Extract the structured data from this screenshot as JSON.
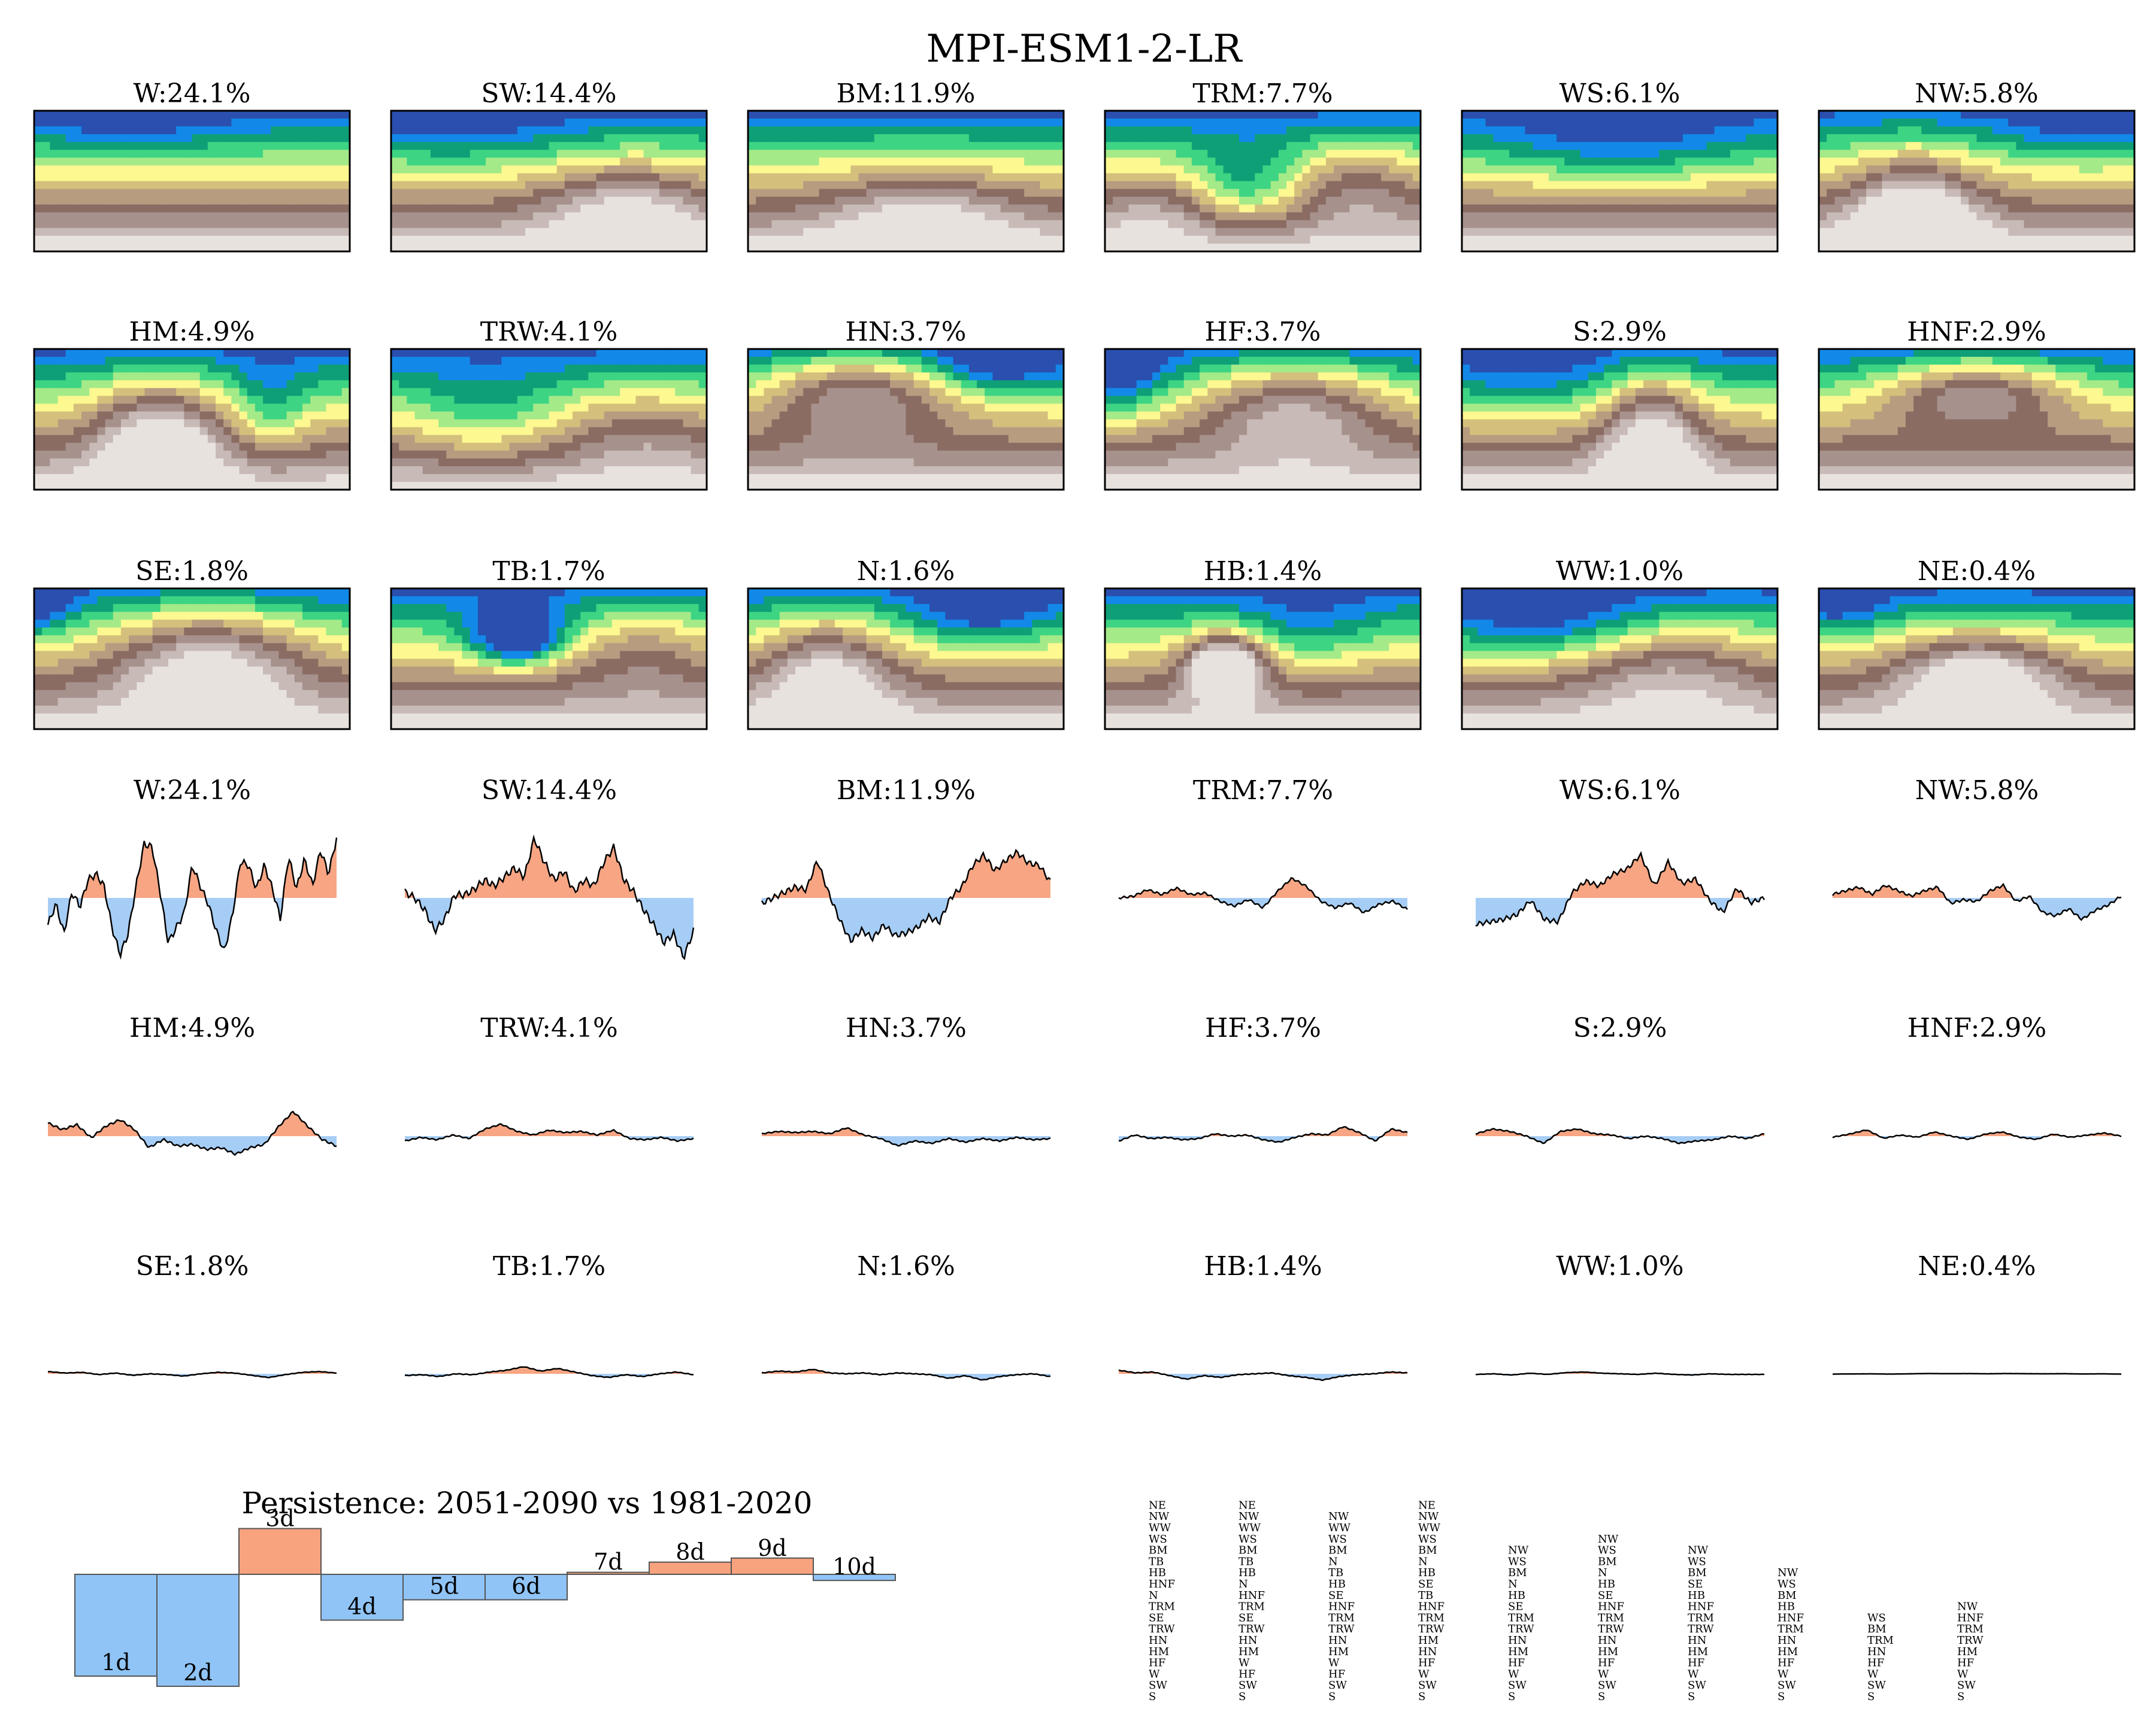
{
  "title": "MPI-ESM1-2-LR",
  "colors": {
    "positive_fill": "#f7a583",
    "negative_fill": "#a6cdf5",
    "line": "#000000",
    "bar_positive": "#f8a27e",
    "bar_negative": "#90c4f6",
    "map_palette": [
      "#e8e2df",
      "#c8bab6",
      "#a7918c",
      "#8a6c63",
      "#b89c80",
      "#d4c07c",
      "#fdf890",
      "#a4ea88",
      "#3dd483",
      "#0f9f77",
      "#1289e8",
      "#2a4faf"
    ]
  },
  "map_panels": [
    {
      "label": "W:24.1%",
      "pattern": "zonal"
    },
    {
      "label": "SW:14.4%",
      "pattern": "sw"
    },
    {
      "label": "BM:11.9%",
      "pattern": "bm"
    },
    {
      "label": "TRM:7.7%",
      "pattern": "trough"
    },
    {
      "label": "WS:6.1%",
      "pattern": "ws"
    },
    {
      "label": "NW:5.8%",
      "pattern": "nw"
    },
    {
      "label": "HM:4.9%",
      "pattern": "hm"
    },
    {
      "label": "TRW:4.1%",
      "pattern": "trw"
    },
    {
      "label": "HN:3.7%",
      "pattern": "hn"
    },
    {
      "label": "HF:3.7%",
      "pattern": "hf"
    },
    {
      "label": "S:2.9%",
      "pattern": "s"
    },
    {
      "label": "HNF:2.9%",
      "pattern": "hnf"
    },
    {
      "label": "SE:1.8%",
      "pattern": "se"
    },
    {
      "label": "TB:1.7%",
      "pattern": "tb"
    },
    {
      "label": "N:1.6%",
      "pattern": "n"
    },
    {
      "label": "HB:1.4%",
      "pattern": "hb"
    },
    {
      "label": "WW:1.0%",
      "pattern": "ww"
    },
    {
      "label": "NE:0.4%",
      "pattern": "ne"
    }
  ],
  "chart_data": [
    {
      "type": "area",
      "description_key": "frequency anomaly time series per weather type",
      "series": [
        {
          "name": "W:24.1%",
          "amplitude": 1.0,
          "values": [
            -0.45,
            -0.1,
            -0.6,
            0.1,
            -0.15,
            0.3,
            0.4,
            0.2,
            -0.5,
            -0.95,
            -0.6,
            0.2,
            0.9,
            0.85,
            0.1,
            -0.75,
            -0.5,
            -0.25,
            0.55,
            0.2,
            -0.1,
            -0.55,
            -0.9,
            -0.3,
            0.6,
            0.55,
            0.15,
            0.55,
            0.15,
            -0.35,
            0.7,
            0.15,
            0.65,
            0.2,
            0.8,
            0.4,
            1.0
          ]
        },
        {
          "name": "SW:14.4%",
          "amplitude": 1.0,
          "values": [
            0.1,
            0.0,
            -0.2,
            -0.55,
            -0.35,
            0.05,
            0.05,
            0.15,
            0.3,
            0.2,
            0.35,
            0.5,
            0.35,
            1.0,
            0.6,
            0.3,
            0.45,
            0.1,
            0.3,
            0.2,
            0.6,
            0.85,
            0.3,
            0.1,
            -0.2,
            -0.45,
            -0.75,
            -0.6,
            -1.0,
            -0.55
          ]
        },
        {
          "name": "BM:11.9%",
          "amplitude": 0.9,
          "values": [
            -0.1,
            0.0,
            0.1,
            0.2,
            0.15,
            0.7,
            0.1,
            -0.4,
            -0.8,
            -0.6,
            -0.75,
            -0.5,
            -0.7,
            -0.65,
            -0.55,
            -0.35,
            -0.45,
            0.0,
            0.2,
            0.6,
            0.8,
            0.5,
            0.7,
            0.85,
            0.65,
            0.6,
            0.3
          ]
        },
        {
          "name": "TRM:7.7%",
          "amplitude": 0.55,
          "values": [
            0.0,
            0.05,
            0.25,
            0.1,
            0.3,
            0.1,
            0.15,
            -0.1,
            -0.25,
            -0.05,
            -0.3,
            0.2,
            0.6,
            0.35,
            -0.1,
            -0.3,
            -0.15,
            -0.45,
            -0.2,
            -0.1,
            -0.35
          ]
        },
        {
          "name": "WS:6.1%",
          "amplitude": 0.8,
          "values": [
            -0.55,
            -0.5,
            -0.45,
            -0.35,
            -0.05,
            -0.45,
            -0.5,
            0.1,
            0.35,
            0.25,
            0.5,
            0.6,
            0.9,
            0.25,
            0.75,
            0.3,
            0.4,
            -0.05,
            -0.3,
            0.2,
            -0.1,
            0.0
          ]
        },
        {
          "name": "NW:5.8%",
          "amplitude": 0.6,
          "values": [
            0.1,
            0.2,
            0.3,
            0.1,
            0.35,
            0.2,
            0.05,
            0.2,
            0.3,
            -0.15,
            -0.05,
            -0.1,
            0.2,
            0.35,
            -0.1,
            0.05,
            -0.4,
            -0.5,
            -0.3,
            -0.6,
            -0.35,
            -0.2,
            0.05
          ]
        },
        {
          "name": "HM:4.9%",
          "amplitude": 0.55,
          "values": [
            0.4,
            0.2,
            0.35,
            -0.05,
            0.3,
            0.5,
            0.2,
            -0.35,
            -0.1,
            -0.3,
            -0.25,
            -0.4,
            -0.35,
            -0.55,
            -0.35,
            -0.25,
            0.3,
            0.75,
            0.3,
            -0.1,
            -0.3
          ]
        },
        {
          "name": "TRW:4.1%",
          "amplitude": 0.4,
          "values": [
            -0.2,
            -0.05,
            -0.15,
            0.05,
            -0.1,
            0.3,
            0.5,
            0.2,
            0.05,
            0.25,
            0.15,
            0.2,
            0.05,
            0.25,
            -0.1,
            -0.15,
            -0.05,
            -0.2,
            -0.1
          ]
        },
        {
          "name": "HN:3.7%",
          "amplitude": 0.4,
          "values": [
            0.1,
            0.2,
            0.15,
            0.2,
            0.1,
            0.35,
            0.05,
            -0.1,
            -0.4,
            -0.2,
            -0.3,
            -0.1,
            -0.25,
            -0.1,
            -0.2,
            -0.05,
            -0.15,
            -0.1
          ]
        },
        {
          "name": "HF:3.7%",
          "amplitude": 0.4,
          "values": [
            -0.2,
            0.05,
            -0.1,
            -0.05,
            -0.15,
            -0.1,
            0.1,
            0.0,
            0.05,
            -0.15,
            -0.25,
            -0.05,
            0.1,
            0.05,
            0.4,
            0.15,
            -0.2,
            0.3,
            0.15
          ]
        },
        {
          "name": "S:2.9%",
          "amplitude": 0.4,
          "values": [
            0.1,
            0.3,
            0.2,
            0.0,
            -0.3,
            0.2,
            0.3,
            0.1,
            0.05,
            -0.1,
            0.0,
            -0.1,
            -0.3,
            -0.2,
            -0.15,
            0.0,
            -0.1,
            0.1
          ]
        },
        {
          "name": "HNF:2.9%",
          "amplitude": 0.35,
          "values": [
            -0.05,
            0.1,
            0.3,
            -0.1,
            0.05,
            -0.05,
            0.2,
            0.0,
            -0.15,
            0.1,
            0.2,
            -0.05,
            -0.15,
            0.1,
            -0.05,
            0.05,
            0.15,
            0.0
          ]
        },
        {
          "name": "SE:1.8%",
          "amplitude": 0.25,
          "values": [
            0.15,
            0.05,
            0.1,
            -0.05,
            0.05,
            -0.1,
            0.0,
            -0.05,
            -0.15,
            0.0,
            0.1,
            0.05,
            -0.1,
            -0.25,
            -0.05,
            0.1,
            0.15,
            0.05
          ]
        },
        {
          "name": "TB:1.7%",
          "amplitude": 0.3,
          "values": [
            -0.1,
            -0.05,
            -0.15,
            0.0,
            -0.05,
            0.1,
            0.2,
            0.4,
            0.15,
            0.3,
            0.1,
            -0.1,
            -0.2,
            -0.05,
            -0.15,
            0.0,
            0.1,
            -0.05
          ]
        },
        {
          "name": "N:1.6%",
          "amplitude": 0.3,
          "values": [
            0.05,
            0.15,
            0.1,
            0.25,
            0.05,
            0.0,
            0.05,
            -0.05,
            0.05,
            0.0,
            -0.05,
            -0.25,
            -0.1,
            -0.35,
            -0.15,
            -0.05,
            0.0,
            -0.15
          ]
        },
        {
          "name": "HB:1.4%",
          "amplitude": 0.3,
          "values": [
            0.2,
            0.05,
            0.1,
            -0.1,
            -0.3,
            -0.1,
            -0.2,
            -0.05,
            0.0,
            0.05,
            -0.1,
            -0.2,
            -0.35,
            -0.15,
            -0.05,
            0.0,
            0.1,
            0.05
          ]
        },
        {
          "name": "WW:1.0%",
          "amplitude": 0.2,
          "values": [
            -0.05,
            0.0,
            -0.1,
            0.05,
            -0.05,
            0.1,
            0.15,
            0.05,
            0.0,
            -0.05,
            0.05,
            -0.05,
            -0.1,
            0.0,
            -0.05,
            -0.05,
            -0.05
          ]
        },
        {
          "name": "NE:0.4%",
          "amplitude": 0.1,
          "values": [
            -0.05,
            -0.02,
            0.0,
            -0.05,
            0.0,
            0.05,
            0.02,
            0.04,
            0.0,
            0.05,
            0.02,
            0.0,
            0.02,
            -0.03,
            0.0,
            -0.05
          ]
        }
      ]
    },
    {
      "type": "bar",
      "title": "Persistence: 2051-2090 vs 1981-2020",
      "categories": [
        "1d",
        "2d",
        "3d",
        "4d",
        "5d",
        "6d",
        "7d",
        "8d",
        "9d",
        "10d"
      ],
      "values": [
        -1.0,
        -1.1,
        0.45,
        -0.45,
        -0.25,
        -0.25,
        0.02,
        0.12,
        0.16,
        -0.06
      ]
    },
    {
      "type": "table",
      "columns": [
        [
          "NE",
          "NW",
          "WW",
          "WS",
          "BM",
          "TB",
          "HB",
          "HNF",
          "N",
          "TRM",
          "SE",
          "TRW",
          "HN",
          "HM",
          "HF",
          "W",
          "SW",
          "S"
        ],
        [
          "NE",
          "NW",
          "WW",
          "WS",
          "BM",
          "TB",
          "HB",
          "N",
          "HNF",
          "TRM",
          "SE",
          "TRW",
          "HN",
          "HM",
          "W",
          "HF",
          "SW",
          "S"
        ],
        [
          "NW",
          "WW",
          "WS",
          "BM",
          "N",
          "TB",
          "HB",
          "SE",
          "HNF",
          "TRM",
          "TRW",
          "HN",
          "HM",
          "W",
          "HF",
          "SW",
          "S"
        ],
        [
          "NE",
          "NW",
          "WW",
          "WS",
          "BM",
          "N",
          "HB",
          "SE",
          "TB",
          "HNF",
          "TRM",
          "TRW",
          "HM",
          "HN",
          "HF",
          "W",
          "SW",
          "S"
        ],
        [
          "NW",
          "WS",
          "BM",
          "N",
          "HB",
          "SE",
          "TRM",
          "TRW",
          "HN",
          "HM",
          "HF",
          "W",
          "SW",
          "S"
        ],
        [
          "NW",
          "WS",
          "BM",
          "N",
          "HB",
          "SE",
          "HNF",
          "TRM",
          "TRW",
          "HN",
          "HM",
          "HF",
          "W",
          "SW",
          "S"
        ],
        [
          "NW",
          "WS",
          "BM",
          "SE",
          "HB",
          "HNF",
          "TRM",
          "TRW",
          "HN",
          "HM",
          "HF",
          "W",
          "SW",
          "S"
        ],
        [
          "NW",
          "WS",
          "BM",
          "HB",
          "HNF",
          "TRM",
          "HN",
          "HM",
          "HF",
          "W",
          "SW",
          "S"
        ],
        [
          "WS",
          "BM",
          "TRM",
          "HN",
          "HF",
          "W",
          "SW",
          "S"
        ],
        [
          "NW",
          "HNF",
          "TRM",
          "TRW",
          "HM",
          "HF",
          "W",
          "SW",
          "S"
        ]
      ]
    }
  ]
}
